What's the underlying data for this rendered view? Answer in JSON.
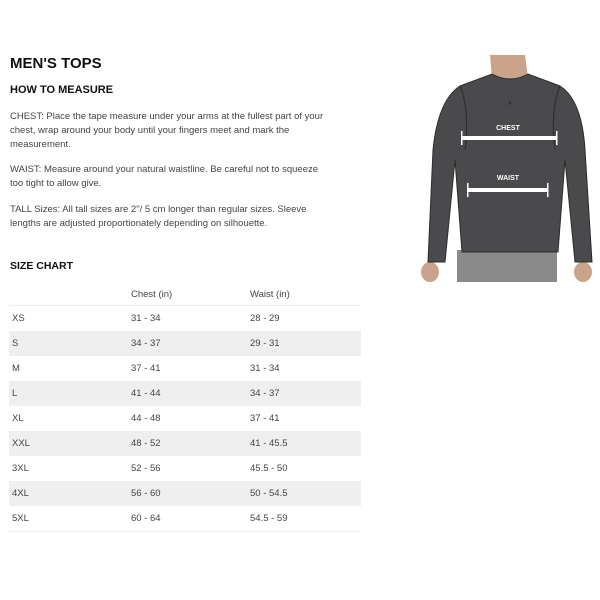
{
  "title": "MEN'S TOPS",
  "how_to": {
    "heading": "HOW TO MEASURE",
    "chest": "CHEST: Place the tape measure under your arms at the fullest part of your chest, wrap around your body until your fingers meet and mark the measurement.",
    "waist": "WAIST: Measure around your natural waistline. Be careful not to squeeze too tight to allow give.",
    "tall": "TALL Sizes: All tall sizes are 2\"/ 5 cm longer than regular sizes. Sleeve lengths are adjusted proportionately depending on silhouette."
  },
  "image": {
    "chest_label": "CHEST",
    "waist_label": "WAIST"
  },
  "size_chart": {
    "heading": "SIZE CHART",
    "columns": [
      "",
      "Chest (in)",
      "Waist (in)"
    ],
    "rows": [
      [
        "XS",
        "31 - 34",
        "28 - 29"
      ],
      [
        "S",
        "34 - 37",
        "29 - 31"
      ],
      [
        "M",
        "37 - 41",
        "31 - 34"
      ],
      [
        "L",
        "41 - 44",
        "34 - 37"
      ],
      [
        "XL",
        "44 - 48",
        "37 - 41"
      ],
      [
        "XXL",
        "48 - 52",
        "41 - 45.5"
      ],
      [
        "3XL",
        "52 - 56",
        "45.5 - 50"
      ],
      [
        "4XL",
        "56 - 60",
        "50 - 54.5"
      ],
      [
        "5XL",
        "60 - 64",
        "54.5 - 59"
      ]
    ]
  }
}
